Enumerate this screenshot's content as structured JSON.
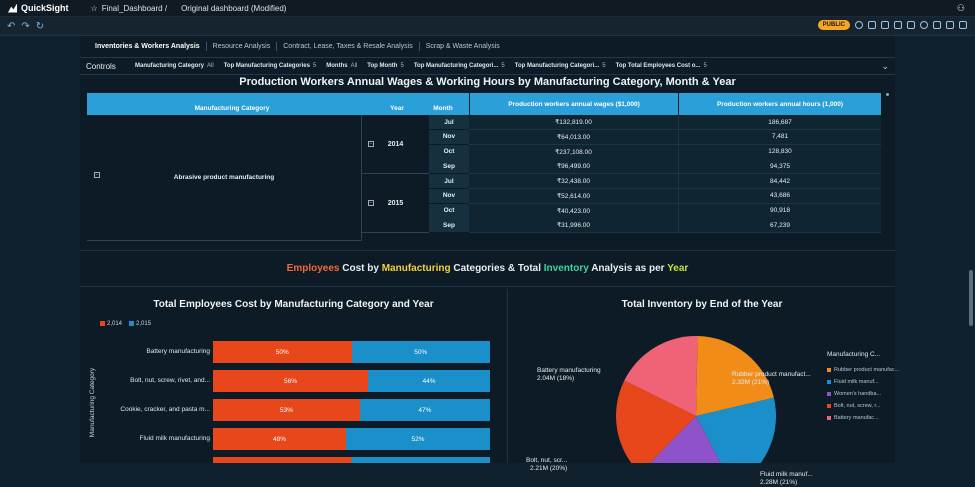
{
  "app": {
    "name": "QuickSight",
    "breadcrumb": "Final_Dashboard /",
    "dashboard": "Original dashboard (Modified)"
  },
  "toolbar": {
    "public_badge": "PUBLIC"
  },
  "tabs": [
    {
      "label": "Inventories & Workers Analysis",
      "active": true
    },
    {
      "label": "Resource Analysis",
      "active": false
    },
    {
      "label": "Contract, Lease, Taxes & Resale Analysis",
      "active": false
    },
    {
      "label": "Scrap & Waste Analysis",
      "active": false
    }
  ],
  "controls": {
    "label": "Controls",
    "items": [
      {
        "name": "Manufacturing Category",
        "value": "All"
      },
      {
        "name": "Top Manufacturing Categories",
        "value": "5"
      },
      {
        "name": "Months",
        "value": "All"
      },
      {
        "name": "Top Month",
        "value": "5"
      },
      {
        "name": "Top Manufacturing Categori...",
        "value": "5"
      },
      {
        "name": "Top Manufacturing Categori...",
        "value": "5"
      },
      {
        "name": "Top Total Employees Cost o...",
        "value": "5"
      }
    ]
  },
  "pivot": {
    "title": "Production Workers Annual Wages & Working Hours by Manufacturing Category, Month & Year",
    "headers": [
      "Manufacturing Category",
      "Year",
      "Month",
      "Production workers annual wages ($1,000)",
      "Production workers annual hours (1,000)"
    ],
    "category": "Abrasive product manufacturing",
    "years": [
      {
        "year": "2014",
        "rows": [
          {
            "month": "Jul",
            "wages": "₹132,819.00",
            "hours": "186,687"
          },
          {
            "month": "Nov",
            "wages": "₹64,013.00",
            "hours": "7,481"
          },
          {
            "month": "Oct",
            "wages": "₹237,108.00",
            "hours": "128,830"
          },
          {
            "month": "Sep",
            "wages": "₹96,499.00",
            "hours": "94,375"
          }
        ]
      },
      {
        "year": "2015",
        "rows": [
          {
            "month": "Jul",
            "wages": "₹32,438.00",
            "hours": "84,442"
          },
          {
            "month": "Nov",
            "wages": "₹52,614.00",
            "hours": "43,686"
          },
          {
            "month": "Oct",
            "wages": "₹40,423.00",
            "hours": "90,918"
          },
          {
            "month": "Sep",
            "wages": "₹31,996.00",
            "hours": "67,239"
          }
        ]
      }
    ]
  },
  "banner": {
    "parts": [
      {
        "text": "Employees",
        "color": "#f06a3a"
      },
      {
        "text": " Cost by ",
        "color": "#e6edf3"
      },
      {
        "text": "Manufacturing",
        "color": "#f2d13a"
      },
      {
        "text": " Categories & Total ",
        "color": "#e6edf3"
      },
      {
        "text": "Inventory",
        "color": "#3fd3a8"
      },
      {
        "text": " Analysis as per ",
        "color": "#e6edf3"
      },
      {
        "text": "Year",
        "color": "#c8e03a"
      }
    ]
  },
  "chart_data": [
    {
      "type": "bar",
      "orientation": "horizontal-stacked-100",
      "title": "Total Employees Cost by Manufacturing Category and Year",
      "ylabel": "Manufacturing Category",
      "series": [
        {
          "name": "2,014",
          "color": "#e8461b",
          "values": [
            50,
            56,
            53,
            48
          ]
        },
        {
          "name": "2,015",
          "color": "#1a8fc9",
          "values": [
            50,
            44,
            47,
            52
          ]
        }
      ],
      "categories": [
        "Battery manufacturing",
        "Bolt, nut, screw, rivet, and...",
        "Cookie, cracker, and pasta m...",
        "Fluid milk manufacturing"
      ]
    },
    {
      "type": "pie",
      "title": "Total Inventory by End of the Year",
      "legend_title": "Manufacturing C...",
      "slices": [
        {
          "label": "Rubber product manufact...",
          "value_label": "2.32M (21%)",
          "value": 21,
          "color": "#f28c18"
        },
        {
          "label": "Fluid milk manuf...",
          "value_label": "2.28M (21%)",
          "value": 21,
          "color": "#1a8fc9"
        },
        {
          "label": "Women's handba...",
          "value_label": "",
          "value": 20,
          "color": "#8e52c9"
        },
        {
          "label": "Bolt, nut, scr...",
          "value_label": "2.21M (20%)",
          "value": 20,
          "color": "#e8461b"
        },
        {
          "label": "Battery manufacturing",
          "value_label": "2.04M (18%)",
          "value": 18,
          "color": "#f06377"
        }
      ],
      "legend": [
        "Rubber product manufac...",
        "Fluid milk manuf...",
        "Women's handba...",
        "Bolt, nut, screw, r...",
        "Battery manufac..."
      ]
    }
  ]
}
